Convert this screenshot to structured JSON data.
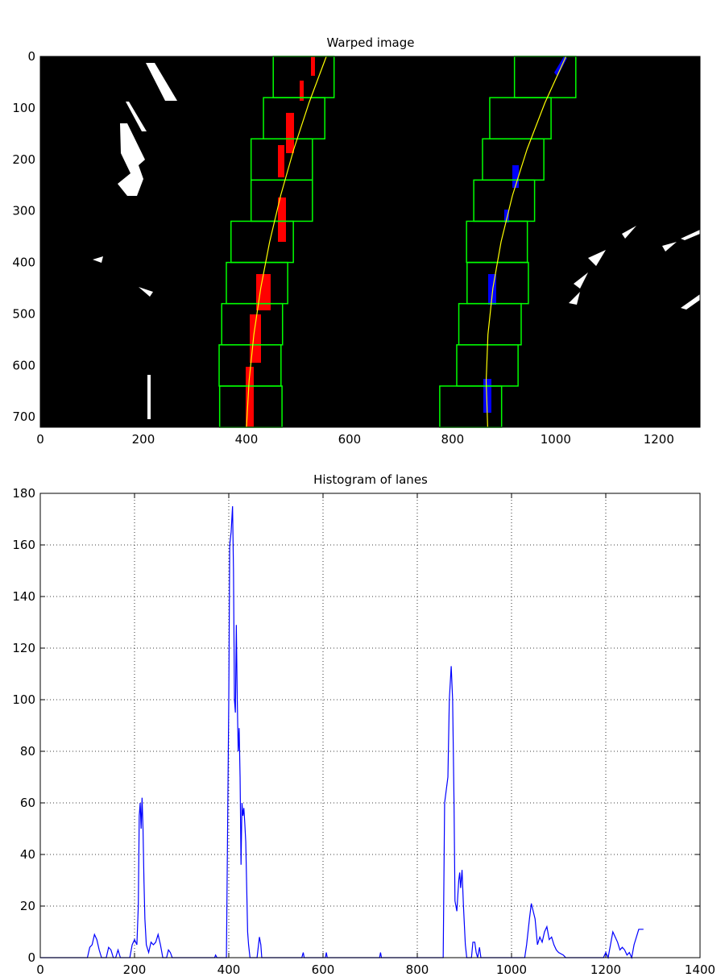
{
  "chart_data": [
    {
      "type": "image",
      "title": "Warped image",
      "xlim": [
        0,
        1280
      ],
      "ylim": [
        720,
        0
      ],
      "xticks": [
        0,
        200,
        400,
        600,
        800,
        1000,
        1200
      ],
      "yticks": [
        0,
        100,
        200,
        300,
        400,
        500,
        600,
        700
      ],
      "window_color": "#00ff00",
      "fit_color": "#ffff00",
      "left_windows": [
        [
          452,
          570
        ],
        [
          433,
          552
        ],
        [
          409,
          528
        ],
        [
          409,
          528
        ],
        [
          370,
          491
        ],
        [
          361,
          480
        ],
        [
          352,
          470
        ],
        [
          347,
          467
        ],
        [
          348,
          469
        ]
      ],
      "right_windows": [
        [
          920,
          1039
        ],
        [
          872,
          991
        ],
        [
          858,
          977
        ],
        [
          841,
          959
        ],
        [
          827,
          945
        ],
        [
          828,
          947
        ],
        [
          812,
          933
        ],
        [
          808,
          927
        ],
        [
          775,
          895
        ]
      ],
      "fit_y": [
        0,
        90,
        180,
        270,
        360,
        450,
        540,
        630,
        720
      ],
      "left_fit": [
        555,
        521.4,
        491.9,
        466.4,
        445,
        427.7,
        414.4,
        405.1,
        400
      ],
      "right_fit": [
        1020,
        979.1,
        944.5,
        916.1,
        894,
        878.1,
        868.5,
        865.1,
        868
      ]
    },
    {
      "type": "line",
      "title": "Histogram of lanes",
      "xlim": [
        0,
        1400
      ],
      "ylim": [
        0,
        180
      ],
      "xticks": [
        0,
        200,
        400,
        600,
        800,
        1000,
        1200,
        1400
      ],
      "yticks": [
        0,
        20,
        40,
        60,
        80,
        100,
        120,
        140,
        160,
        180
      ],
      "grid": true,
      "color": "#0000ff",
      "x": [
        0,
        100,
        105,
        110,
        115,
        120,
        125,
        130,
        140,
        145,
        150,
        155,
        160,
        165,
        170,
        190,
        195,
        200,
        205,
        208,
        210,
        212,
        214,
        216,
        218,
        220,
        222,
        225,
        230,
        235,
        240,
        245,
        250,
        255,
        260,
        268,
        272,
        276,
        280,
        370,
        372,
        375,
        395,
        400,
        402,
        405,
        408,
        410,
        412,
        414,
        416,
        418,
        420,
        422,
        424,
        426,
        428,
        430,
        432,
        434,
        436,
        440,
        442,
        445,
        460,
        465,
        468,
        470,
        555,
        558,
        560,
        605,
        607,
        609,
        720,
        722,
        724,
        855,
        858,
        865,
        868,
        872,
        875,
        878,
        880,
        884,
        888,
        890,
        892,
        895,
        898,
        902,
        905,
        915,
        918,
        922,
        925,
        928,
        932,
        935,
        1028,
        1032,
        1038,
        1042,
        1046,
        1050,
        1055,
        1060,
        1065,
        1070,
        1075,
        1080,
        1085,
        1090,
        1095,
        1100,
        1110,
        1115,
        1195,
        1200,
        1205,
        1210,
        1215,
        1220,
        1225,
        1230,
        1235,
        1240,
        1245,
        1250,
        1255,
        1260,
        1265,
        1270,
        1275,
        1280
      ],
      "values": [
        0,
        0,
        4,
        5,
        9,
        7,
        3,
        0,
        0,
        4,
        3,
        0,
        0,
        3,
        0,
        0,
        5,
        7,
        5,
        20,
        55,
        60,
        50,
        62,
        50,
        30,
        15,
        5,
        2,
        6,
        5,
        6,
        9,
        5,
        0,
        0,
        3,
        2,
        0,
        0,
        1,
        0,
        0,
        100,
        160,
        165,
        175,
        150,
        100,
        95,
        129,
        100,
        80,
        89,
        70,
        36,
        60,
        55,
        58,
        52,
        45,
        10,
        5,
        0,
        0,
        8,
        5,
        0,
        0,
        2,
        0,
        0,
        2,
        0,
        0,
        2,
        0,
        0,
        60,
        70,
        100,
        113,
        100,
        60,
        22,
        18,
        30,
        33,
        27,
        34,
        20,
        5,
        0,
        0,
        6,
        6,
        2,
        0,
        4,
        0,
        0,
        5,
        15,
        21,
        18,
        15,
        5,
        8,
        6,
        10,
        12,
        7,
        8,
        5,
        3,
        2,
        1,
        0,
        0,
        2,
        0,
        5,
        10,
        8,
        6,
        3,
        4,
        3,
        1,
        2,
        0,
        5,
        8,
        11,
        11,
        11
      ]
    }
  ]
}
